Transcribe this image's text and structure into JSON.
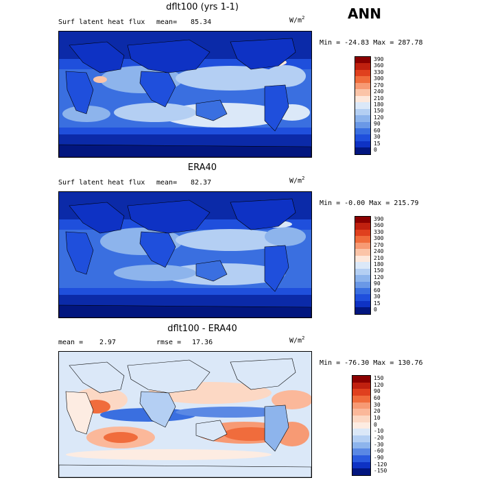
{
  "season": "ANN",
  "panels": [
    {
      "title": "dflt100 (yrs 1-1)",
      "variable": "Surf latent heat flux",
      "stat_label": "mean=",
      "stat_value": "85.34",
      "units": "W/m",
      "units_exp": "2",
      "minmax": "Min = -24.83 Max = 287.78",
      "levels": [
        "390",
        "360",
        "330",
        "300",
        "270",
        "240",
        "210",
        "180",
        "150",
        "120",
        "90",
        "60",
        "30",
        "15",
        "0"
      ],
      "colors": [
        "#8b0000",
        "#c0200f",
        "#e0401e",
        "#f06c3c",
        "#f79a74",
        "#fbc4a8",
        "#fde8dc",
        "#dbe8f8",
        "#b4cff3",
        "#8db4ec",
        "#6a98e6",
        "#3a6fe0",
        "#1f4fdc",
        "#0e32c4",
        "#02167f"
      ]
    },
    {
      "title": "ERA40",
      "variable": "Surf latent heat flux",
      "stat_label": "mean=",
      "stat_value": "82.37",
      "units": "W/m",
      "units_exp": "2",
      "minmax": "Min = -0.00 Max = 215.79",
      "levels": [
        "390",
        "360",
        "330",
        "300",
        "270",
        "240",
        "210",
        "180",
        "150",
        "120",
        "90",
        "60",
        "30",
        "15",
        "0"
      ],
      "colors": [
        "#8b0000",
        "#c0200f",
        "#e0401e",
        "#f06c3c",
        "#f79a74",
        "#fbc4a8",
        "#fde8dc",
        "#dbe8f8",
        "#b4cff3",
        "#8db4ec",
        "#6a98e6",
        "#3a6fe0",
        "#1f4fdc",
        "#0e32c4",
        "#02167f"
      ]
    },
    {
      "title": "dflt100 - ERA40",
      "mean_label": "mean =",
      "mean_value": "2.97",
      "rmse_label": "rmse =",
      "rmse_value": "17.36",
      "units": "W/m",
      "units_exp": "2",
      "minmax": "Min = -76.30 Max = 130.76",
      "levels": [
        "150",
        "120",
        "90",
        "60",
        "30",
        "20",
        "10",
        "0",
        "-10",
        "-20",
        "-30",
        "-60",
        "-90",
        "-120",
        "-150"
      ],
      "colors": [
        "#8b0000",
        "#c0200f",
        "#e0401e",
        "#f06c3c",
        "#f79a74",
        "#fbb89a",
        "#fcd8c4",
        "#fdece2",
        "#dbe8f8",
        "#b4cff3",
        "#8db4ec",
        "#5a88e4",
        "#2a5ade",
        "#0e32c4",
        "#02167f"
      ]
    }
  ]
}
